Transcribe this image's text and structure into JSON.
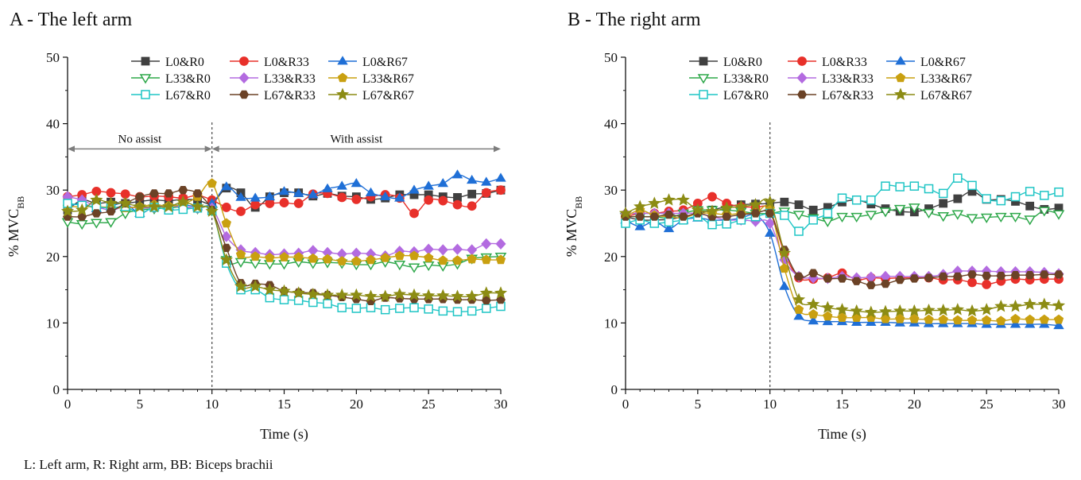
{
  "panels": [
    {
      "title": "A - The left arm"
    },
    {
      "title": "B - The right arm"
    }
  ],
  "footnote": "L: Left arm, R: Right arm, BB: Biceps brachii",
  "annotations": {
    "no_assist": "No assist",
    "with_assist": "With assist"
  },
  "chart_data": [
    {
      "type": "line",
      "title": "A - The left arm",
      "xlabel": "Time (s)",
      "ylabel": "% MVC_BB",
      "xlim": [
        0,
        30
      ],
      "ylim": [
        0,
        50
      ],
      "xticks": [
        0,
        5,
        10,
        15,
        20,
        25,
        30
      ],
      "yticks": [
        0,
        10,
        20,
        30,
        40,
        50
      ],
      "legend_position": "top",
      "vline_x": 10,
      "x": [
        0,
        1,
        2,
        3,
        4,
        5,
        6,
        7,
        8,
        9,
        10,
        11,
        12,
        13,
        14,
        15,
        16,
        17,
        18,
        19,
        20,
        21,
        22,
        23,
        24,
        25,
        26,
        27,
        28,
        29,
        30
      ],
      "series": [
        {
          "name": "L0&R0",
          "color": "#404040",
          "marker": "square-filled",
          "values": [
            27.0,
            28.5,
            28.0,
            28.2,
            28.0,
            28.3,
            28.5,
            28.4,
            28.6,
            28.5,
            28.0,
            30.3,
            29.6,
            27.4,
            29.0,
            29.6,
            29.6,
            29.1,
            29.5,
            29.1,
            29.0,
            28.6,
            28.8,
            29.3,
            29.3,
            29.3,
            29.0,
            28.9,
            29.4,
            29.5,
            30.0
          ]
        },
        {
          "name": "L0&R33",
          "color": "#e8302a",
          "marker": "circle-filled",
          "values": [
            29.0,
            29.3,
            29.8,
            29.6,
            29.4,
            29.0,
            29.1,
            29.0,
            28.8,
            29.2,
            28.5,
            27.4,
            26.8,
            27.8,
            28.0,
            28.1,
            28.0,
            29.4,
            29.5,
            28.9,
            28.6,
            29.0,
            29.3,
            28.8,
            26.5,
            28.5,
            28.4,
            27.8,
            27.6,
            29.6,
            30.0
          ]
        },
        {
          "name": "L0&R67",
          "color": "#1f6fd6",
          "marker": "triangle-filled",
          "values": [
            27.5,
            28.0,
            27.2,
            27.6,
            28.0,
            26.5,
            27.5,
            27.6,
            27.8,
            27.5,
            28.0,
            30.5,
            28.9,
            28.8,
            29.0,
            29.8,
            29.5,
            29.3,
            30.2,
            30.6,
            31.0,
            29.6,
            29.0,
            28.8,
            30.0,
            30.6,
            31.0,
            32.3,
            31.5,
            31.2,
            31.8
          ]
        },
        {
          "name": "L33&R0",
          "color": "#2ea84a",
          "marker": "triangle-down-open",
          "values": [
            25.2,
            24.9,
            25.1,
            25.2,
            26.5,
            27.0,
            27.2,
            27.3,
            27.5,
            27.2,
            26.9,
            19.5,
            19.2,
            19.0,
            18.9,
            18.9,
            19.2,
            19.0,
            19.1,
            19.0,
            18.8,
            18.8,
            19.2,
            18.8,
            18.4,
            18.7,
            18.6,
            18.9,
            19.7,
            19.9,
            20.0
          ]
        },
        {
          "name": "L33&R33",
          "color": "#b36be0",
          "marker": "diamond-filled",
          "values": [
            29.0,
            28.5,
            27.5,
            27.0,
            27.5,
            27.3,
            27.4,
            27.6,
            27.5,
            27.3,
            27.3,
            23.0,
            21.0,
            20.6,
            20.3,
            20.4,
            20.5,
            20.9,
            20.6,
            20.4,
            20.5,
            20.4,
            20.1,
            20.8,
            20.7,
            21.1,
            21.0,
            21.1,
            21.0,
            21.9,
            21.9
          ]
        },
        {
          "name": "L33&R67",
          "color": "#c9a010",
          "marker": "pentagon-filled",
          "values": [
            27.5,
            27.5,
            27.5,
            27.4,
            27.3,
            27.5,
            27.8,
            27.6,
            27.9,
            29.0,
            31.0,
            25.0,
            20.3,
            20.0,
            19.8,
            19.9,
            19.9,
            19.7,
            19.6,
            19.3,
            19.3,
            19.5,
            19.8,
            20.1,
            20.1,
            19.8,
            19.4,
            19.4,
            19.6,
            19.5,
            19.5
          ]
        },
        {
          "name": "L67&R0",
          "color": "#1fc5c5",
          "marker": "square-open",
          "values": [
            28.0,
            27.7,
            27.5,
            27.3,
            27.5,
            26.5,
            27.4,
            27.0,
            27.1,
            27.3,
            26.9,
            19.0,
            15.0,
            15.0,
            13.8,
            13.5,
            13.4,
            13.1,
            12.9,
            12.3,
            12.2,
            12.3,
            12.0,
            12.2,
            12.3,
            12.1,
            11.8,
            11.7,
            11.8,
            12.2,
            12.5
          ]
        },
        {
          "name": "L67&R33",
          "color": "#6b4226",
          "marker": "hexagon-filled",
          "values": [
            26.0,
            26.0,
            26.5,
            26.8,
            28.0,
            29.0,
            29.5,
            29.5,
            30.0,
            29.5,
            27.0,
            21.3,
            16.0,
            15.9,
            15.7,
            14.8,
            14.6,
            14.5,
            14.2,
            13.9,
            13.6,
            13.3,
            13.8,
            13.7,
            13.6,
            13.6,
            13.6,
            13.5,
            13.5,
            13.4,
            13.5
          ]
        },
        {
          "name": "L67&R67",
          "color": "#8c8c14",
          "marker": "star-filled",
          "values": [
            26.8,
            27.0,
            28.5,
            28.0,
            28.0,
            27.5,
            27.5,
            27.5,
            28.2,
            27.5,
            26.8,
            19.5,
            15.5,
            15.5,
            15.0,
            14.8,
            14.5,
            14.3,
            14.2,
            14.2,
            14.2,
            14.0,
            14.0,
            14.3,
            14.2,
            14.1,
            14.1,
            14.0,
            14.0,
            14.5,
            14.5
          ]
        }
      ]
    },
    {
      "type": "line",
      "title": "B - The right arm",
      "xlabel": "Time (s)",
      "ylabel": "% MVC_BB",
      "xlim": [
        0,
        30
      ],
      "ylim": [
        0,
        50
      ],
      "xticks": [
        0,
        5,
        10,
        15,
        20,
        25,
        30
      ],
      "yticks": [
        0,
        10,
        20,
        30,
        40,
        50
      ],
      "legend_position": "top",
      "vline_x": 10,
      "x": [
        0,
        1,
        2,
        3,
        4,
        5,
        6,
        7,
        8,
        9,
        10,
        11,
        12,
        13,
        14,
        15,
        16,
        17,
        18,
        19,
        20,
        21,
        22,
        23,
        24,
        25,
        26,
        27,
        28,
        29,
        30
      ],
      "series": [
        {
          "name": "L0&R0",
          "color": "#404040",
          "marker": "square-filled",
          "values": [
            26.0,
            25.5,
            25.5,
            25.6,
            26.0,
            26.5,
            27.0,
            27.5,
            27.8,
            27.9,
            28.0,
            28.2,
            27.8,
            27.0,
            27.4,
            28.2,
            28.5,
            27.9,
            27.2,
            26.8,
            26.7,
            27.2,
            28.0,
            28.7,
            29.8,
            28.6,
            28.6,
            28.3,
            27.6,
            27.1,
            27.3
          ]
        },
        {
          "name": "L0&R33",
          "color": "#e8302a",
          "marker": "circle-filled",
          "values": [
            26.0,
            26.5,
            26.5,
            26.8,
            27.0,
            28.0,
            29.0,
            28.0,
            27.5,
            27.4,
            27.0,
            20.5,
            16.8,
            16.6,
            16.8,
            17.5,
            16.5,
            16.8,
            16.7,
            16.8,
            16.8,
            16.8,
            16.5,
            16.5,
            16.1,
            15.8,
            16.3,
            16.6,
            16.5,
            16.6,
            16.6
          ]
        },
        {
          "name": "L0&R67",
          "color": "#1f6fd6",
          "marker": "triangle-filled",
          "values": [
            25.5,
            24.5,
            25.3,
            24.2,
            25.5,
            25.8,
            25.5,
            25.5,
            25.8,
            26.2,
            23.5,
            15.5,
            11.0,
            10.3,
            10.2,
            10.2,
            10.1,
            10.1,
            10.1,
            10.0,
            10.0,
            9.9,
            9.9,
            9.9,
            9.9,
            9.8,
            9.8,
            9.8,
            9.8,
            9.8,
            9.6
          ]
        },
        {
          "name": "L33&R0",
          "color": "#2ea84a",
          "marker": "triangle-down-open",
          "values": [
            26.0,
            26.0,
            26.0,
            25.8,
            26.5,
            27.0,
            27.0,
            27.0,
            26.8,
            26.5,
            26.5,
            26.8,
            26.3,
            25.8,
            25.3,
            26.0,
            26.0,
            26.3,
            26.8,
            27.2,
            27.4,
            26.6,
            26.1,
            26.4,
            25.8,
            25.9,
            26.0,
            26.0,
            25.6,
            26.9,
            26.4
          ]
        },
        {
          "name": "L33&R33",
          "color": "#b36be0",
          "marker": "diamond-filled",
          "values": [
            26.5,
            26.5,
            26.5,
            26.5,
            26.5,
            26.5,
            26.0,
            25.5,
            25.5,
            25.3,
            25.0,
            19.5,
            17.0,
            16.8,
            16.7,
            17.0,
            16.8,
            16.9,
            17.0,
            17.0,
            17.0,
            17.0,
            17.3,
            17.8,
            17.8,
            17.8,
            17.7,
            17.7,
            17.7,
            17.6,
            17.4
          ]
        },
        {
          "name": "L33&R67",
          "color": "#c9a010",
          "marker": "pentagon-filled",
          "values": [
            26.0,
            27.0,
            26.2,
            26.0,
            25.8,
            26.5,
            26.5,
            26.3,
            26.5,
            26.5,
            27.2,
            18.2,
            12.0,
            11.3,
            11.0,
            10.8,
            10.8,
            10.8,
            10.6,
            10.6,
            10.6,
            10.5,
            10.5,
            10.4,
            10.4,
            10.4,
            10.3,
            10.6,
            10.5,
            10.5,
            10.5
          ]
        },
        {
          "name": "L67&R0",
          "color": "#1fc5c5",
          "marker": "square-open",
          "values": [
            25.0,
            25.5,
            25.0,
            25.2,
            25.5,
            26.0,
            24.8,
            24.9,
            25.5,
            26.0,
            26.5,
            26.2,
            23.8,
            25.5,
            26.5,
            28.8,
            28.5,
            28.5,
            30.6,
            30.5,
            30.6,
            30.2,
            29.5,
            31.8,
            30.7,
            28.7,
            28.4,
            29.0,
            29.8,
            29.2,
            29.7
          ]
        },
        {
          "name": "L67&R33",
          "color": "#6b4226",
          "marker": "hexagon-filled",
          "values": [
            26.0,
            26.0,
            26.0,
            26.3,
            26.0,
            26.5,
            26.0,
            26.0,
            26.3,
            26.5,
            26.5,
            21.0,
            17.0,
            17.5,
            16.7,
            16.7,
            16.3,
            15.7,
            15.9,
            16.5,
            16.7,
            16.8,
            17.0,
            17.0,
            17.3,
            17.1,
            17.1,
            17.2,
            17.2,
            17.3,
            17.3
          ]
        },
        {
          "name": "L67&R67",
          "color": "#8c8c14",
          "marker": "star-filled",
          "values": [
            26.5,
            27.5,
            28.0,
            28.5,
            28.5,
            27.0,
            26.8,
            27.3,
            27.5,
            27.8,
            28.2,
            20.5,
            13.5,
            12.8,
            12.3,
            12.0,
            11.8,
            11.6,
            11.7,
            11.8,
            11.8,
            11.9,
            11.9,
            12.0,
            11.8,
            12.0,
            12.5,
            12.5,
            12.8,
            12.8,
            12.6
          ]
        }
      ]
    }
  ]
}
